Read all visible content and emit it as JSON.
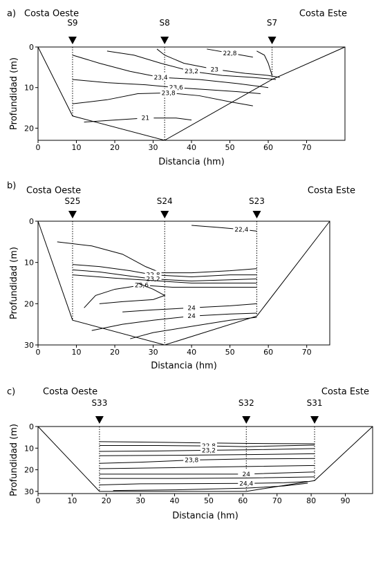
{
  "chart_data": [
    {
      "type": "contour",
      "panel_label": "a)",
      "coast_left": "Costa Oeste",
      "coast_right": "Costa Este",
      "xlabel": "Distancia (hm)",
      "ylabel": "Profundidad (m)",
      "xlim": [
        0,
        80
      ],
      "ylim": [
        0,
        23
      ],
      "xticks": [
        0,
        10,
        20,
        30,
        40,
        50,
        60,
        70
      ],
      "yticks": [
        0,
        10,
        20
      ],
      "stations": [
        {
          "name": "S9",
          "x": 9
        },
        {
          "name": "S8",
          "x": 33
        },
        {
          "name": "S7",
          "x": 61
        }
      ],
      "bottom_profile": [
        [
          0,
          0
        ],
        [
          9,
          17
        ],
        [
          33,
          23
        ],
        [
          61,
          8
        ],
        [
          80,
          0
        ]
      ],
      "contours": [
        {
          "label": "23,2",
          "points": [
            [
              18,
              1
            ],
            [
              25,
              2
            ],
            [
              32,
              4
            ],
            [
              40,
              6
            ],
            [
              48,
              7
            ],
            [
              56,
              7.5
            ],
            [
              62,
              8
            ]
          ]
        },
        {
          "label": "23",
          "points": [
            [
              31,
              0.5
            ],
            [
              33,
              2
            ],
            [
              38,
              4
            ],
            [
              46,
              5.5
            ],
            [
              54,
              6.5
            ],
            [
              60,
              7
            ],
            [
              63,
              7.5
            ]
          ]
        },
        {
          "label": "23,4",
          "points": [
            [
              9,
              2
            ],
            [
              16,
              4
            ],
            [
              24,
              6
            ],
            [
              32,
              7.5
            ],
            [
              42,
              8
            ],
            [
              52,
              9
            ],
            [
              60,
              10
            ]
          ]
        },
        {
          "label": "23,6",
          "points": [
            [
              9,
              8
            ],
            [
              18,
              8.8
            ],
            [
              28,
              9.3
            ],
            [
              36,
              10
            ],
            [
              44,
              10.5
            ],
            [
              52,
              11
            ],
            [
              58,
              11.5
            ]
          ]
        },
        {
          "label": "23,8",
          "points": [
            [
              9,
              14
            ],
            [
              18,
              13
            ],
            [
              26,
              11.5
            ],
            [
              34,
              11.3
            ],
            [
              42,
              12
            ],
            [
              50,
              13.5
            ],
            [
              56,
              14.5
            ]
          ]
        },
        {
          "label": "21",
          "points": [
            [
              12,
              18.5
            ],
            [
              20,
              18
            ],
            [
              28,
              17.5
            ],
            [
              36,
              17.5
            ],
            [
              40,
              18
            ]
          ]
        },
        {
          "label": "22,8",
          "points": [
            [
              44,
              0.5
            ],
            [
              50,
              1.5
            ],
            [
              56,
              2.5
            ]
          ]
        },
        {
          "label": "",
          "points": [
            [
              57,
              1
            ],
            [
              59,
              2
            ],
            [
              60,
              4
            ],
            [
              61,
              7
            ]
          ]
        }
      ]
    },
    {
      "type": "contour",
      "panel_label": "b)",
      "coast_left": "Costa Oeste",
      "coast_right": "Costa Este",
      "xlabel": "Distancia (hm)",
      "ylabel": "Profundidad (m)",
      "xlim": [
        0,
        76
      ],
      "ylim": [
        0,
        30
      ],
      "xticks": [
        0,
        10,
        20,
        30,
        40,
        50,
        60,
        70
      ],
      "yticks": [
        0,
        10,
        20,
        30
      ],
      "stations": [
        {
          "name": "S25",
          "x": 9
        },
        {
          "name": "S24",
          "x": 33
        },
        {
          "name": "S23",
          "x": 57
        }
      ],
      "bottom_profile": [
        [
          0,
          0
        ],
        [
          9,
          24
        ],
        [
          33,
          30
        ],
        [
          57,
          23
        ],
        [
          76,
          0
        ]
      ],
      "contours": [
        {
          "label": "22,4",
          "points": [
            [
              40,
              1
            ],
            [
              47,
              1.5
            ],
            [
              53,
              2
            ],
            [
              57,
              2.4
            ]
          ]
        },
        {
          "label": "",
          "points": [
            [
              5,
              5
            ],
            [
              14,
              6
            ],
            [
              22,
              8
            ],
            [
              28,
              11
            ],
            [
              32,
              12.5
            ],
            [
              40,
              12.5
            ],
            [
              50,
              12
            ],
            [
              57,
              11.5
            ]
          ]
        },
        {
          "label": "22,8",
          "points": [
            [
              9,
              10.5
            ],
            [
              16,
              11
            ],
            [
              24,
              12
            ],
            [
              30,
              13
            ],
            [
              40,
              13.5
            ],
            [
              50,
              13
            ],
            [
              57,
              13
            ]
          ]
        },
        {
          "label": "23,2",
          "points": [
            [
              9,
              11.8
            ],
            [
              16,
              12.3
            ],
            [
              24,
              13.3
            ],
            [
              30,
              14
            ],
            [
              40,
              14.5
            ],
            [
              50,
              14.2
            ],
            [
              57,
              14
            ]
          ]
        },
        {
          "label": "",
          "points": [
            [
              9,
              13
            ],
            [
              20,
              13.8
            ],
            [
              30,
              14.4
            ],
            [
              40,
              15
            ],
            [
              57,
              15
            ]
          ]
        },
        {
          "label": "23,6",
          "points": [
            [
              12,
              21
            ],
            [
              15,
              18
            ],
            [
              20,
              16.5
            ],
            [
              27,
              15.5
            ],
            [
              35,
              16
            ],
            [
              45,
              16
            ],
            [
              57,
              16
            ]
          ]
        },
        {
          "label": "",
          "points": [
            [
              26,
              15
            ],
            [
              30,
              16.5
            ],
            [
              33,
              18
            ],
            [
              30,
              19
            ],
            [
              22,
              19.5
            ],
            [
              16,
              20
            ]
          ]
        },
        {
          "label": "24",
          "points": [
            [
              22,
              22
            ],
            [
              30,
              21.5
            ],
            [
              40,
              21
            ],
            [
              50,
              20.5
            ],
            [
              57,
              20
            ]
          ]
        },
        {
          "label": "24",
          "points": [
            [
              14,
              26.5
            ],
            [
              22,
              25
            ],
            [
              30,
              24
            ],
            [
              40,
              23
            ],
            [
              50,
              22.5
            ],
            [
              57,
              22.3
            ]
          ]
        },
        {
          "label": "",
          "points": [
            [
              24,
              28.5
            ],
            [
              30,
              27
            ],
            [
              40,
              25.5
            ],
            [
              50,
              24
            ],
            [
              57,
              23.3
            ]
          ]
        }
      ]
    },
    {
      "type": "contour",
      "panel_label": "c)",
      "coast_left": "Costa Oeste",
      "coast_right": "Costa Este",
      "xlabel": "Distancia (hm)",
      "ylabel": "Profundidad (m)",
      "xlim": [
        0,
        98
      ],
      "ylim": [
        0,
        31
      ],
      "xticks": [
        0,
        10,
        20,
        30,
        40,
        50,
        60,
        70,
        80,
        90
      ],
      "yticks": [
        0,
        10,
        20,
        30
      ],
      "stations": [
        {
          "name": "S33",
          "x": 18
        },
        {
          "name": "S32",
          "x": 61
        },
        {
          "name": "S31",
          "x": 81
        }
      ],
      "bottom_profile": [
        [
          0,
          0
        ],
        [
          18,
          30
        ],
        [
          61,
          30
        ],
        [
          81,
          25
        ],
        [
          98,
          0
        ]
      ],
      "contours": [
        {
          "label": "",
          "points": [
            [
              18,
              7
            ],
            [
              30,
              7.2
            ],
            [
              45,
              7.5
            ],
            [
              60,
              7.8
            ],
            [
              81,
              8
            ]
          ]
        },
        {
          "label": "22,8",
          "points": [
            [
              18,
              8.8
            ],
            [
              35,
              8.8
            ],
            [
              50,
              9
            ],
            [
              61,
              9.3
            ],
            [
              81,
              8.6
            ]
          ]
        },
        {
          "label": "23,2",
          "points": [
            [
              18,
              11.5
            ],
            [
              35,
              11.3
            ],
            [
              50,
              11
            ],
            [
              61,
              10.8
            ],
            [
              81,
              10.2
            ]
          ]
        },
        {
          "label": "",
          "points": [
            [
              18,
              13.5
            ],
            [
              40,
              13.3
            ],
            [
              61,
              13
            ],
            [
              81,
              12.6
            ]
          ]
        },
        {
          "label": "23,8",
          "points": [
            [
              18,
              17
            ],
            [
              30,
              16.5
            ],
            [
              45,
              15.5
            ],
            [
              61,
              15
            ],
            [
              81,
              14.8
            ]
          ]
        },
        {
          "label": "",
          "points": [
            [
              18,
              19.5
            ],
            [
              40,
              19
            ],
            [
              61,
              18.5
            ],
            [
              81,
              18
            ]
          ]
        },
        {
          "label": "24",
          "points": [
            [
              18,
              22
            ],
            [
              40,
              22
            ],
            [
              61,
              22
            ],
            [
              81,
              21
            ]
          ]
        },
        {
          "label": "",
          "points": [
            [
              18,
              24
            ],
            [
              40,
              24
            ],
            [
              61,
              23.8
            ],
            [
              81,
              23.3
            ]
          ]
        },
        {
          "label": "24,4",
          "points": [
            [
              18,
              27
            ],
            [
              30,
              26.5
            ],
            [
              45,
              26.4
            ],
            [
              61,
              26.3
            ],
            [
              72,
              26
            ],
            [
              79,
              25.4
            ]
          ]
        },
        {
          "label": "",
          "points": [
            [
              22,
              29.6
            ],
            [
              40,
              29.3
            ],
            [
              61,
              28.5
            ],
            [
              72,
              27.5
            ],
            [
              79,
              26.2
            ]
          ]
        }
      ]
    }
  ]
}
